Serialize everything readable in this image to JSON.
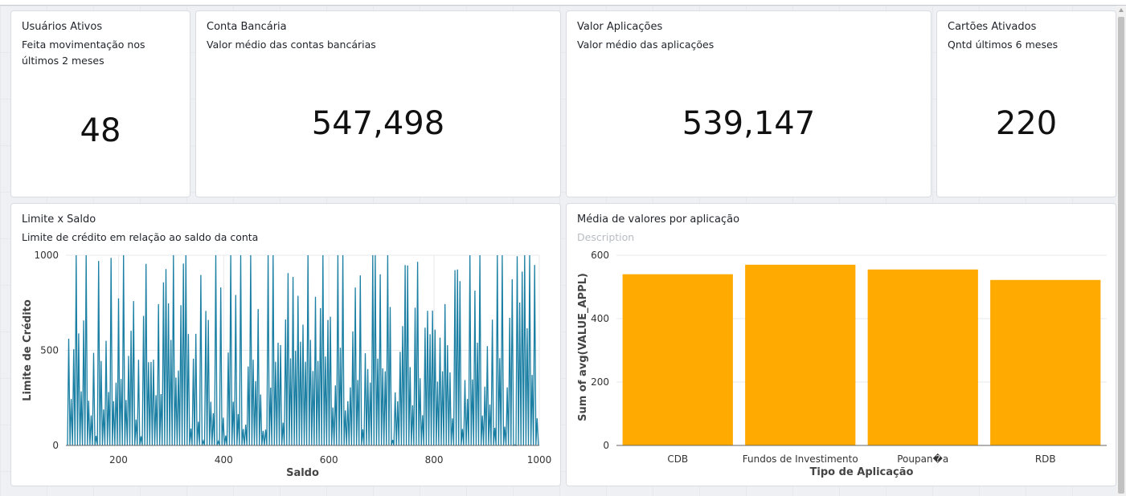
{
  "kpis": [
    {
      "title": "Usuários Ativos",
      "subtitle_line1": "Feita movimentação nos",
      "subtitle_line2": "últimos 2 meses",
      "value": "48"
    },
    {
      "title": "Conta Bancária",
      "subtitle_line1": "Valor médio das contas bancárias",
      "subtitle_line2": "",
      "value": "547,498"
    },
    {
      "title": "Valor Aplicações",
      "subtitle_line1": "Valor médio das aplicações",
      "subtitle_line2": "",
      "value": "539,147"
    },
    {
      "title": "Cartões Ativados",
      "subtitle_line1": "Qntd últimos 6 meses",
      "subtitle_line2": "",
      "value": "220"
    }
  ],
  "charts": {
    "limit": {
      "title": "Limite x Saldo",
      "subtitle": "Limite de crédito em relação ao saldo da conta"
    },
    "apps": {
      "title": "Média de valores por aplicação",
      "subtitle": "Description"
    }
  },
  "colors": {
    "line": "#1a7fa3",
    "bar": "#ffaa00"
  },
  "chart_data": [
    {
      "type": "line",
      "xlabel": "Saldo",
      "ylabel": "Limite de Crédito",
      "xlim": [
        100,
        1000
      ],
      "ylim": [
        0,
        1000
      ],
      "xticks": [
        "200",
        "400",
        "600",
        "800",
        "1000"
      ],
      "yticks": [
        "0",
        "500",
        "1000"
      ],
      "grid": true
    },
    {
      "type": "bar",
      "categories": [
        "CDB",
        "Fundos de Investimento",
        "Poupan�a",
        "RDB"
      ],
      "values": [
        540,
        570,
        555,
        522
      ],
      "xlabel": "Tipo de Aplicação",
      "ylabel": "Sum of avg(VALUE_APPL)",
      "ylim": [
        0,
        600
      ],
      "yticks": [
        "0",
        "200",
        "400",
        "600"
      ],
      "grid": true
    }
  ]
}
